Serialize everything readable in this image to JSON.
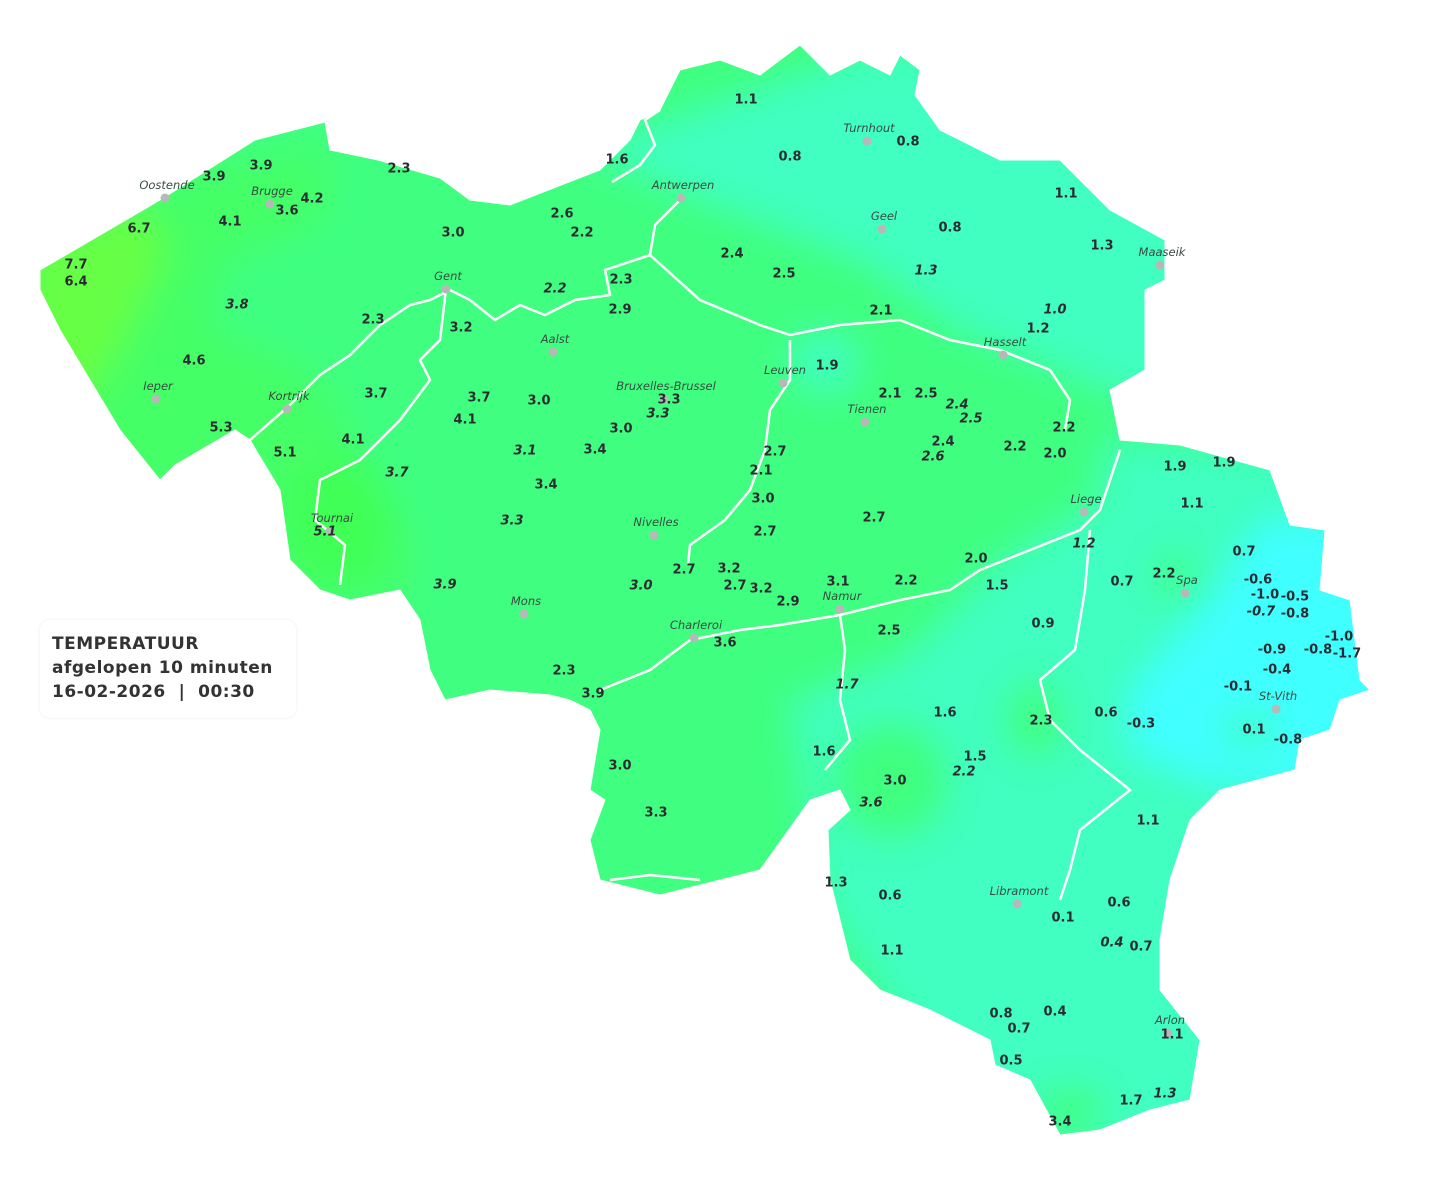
{
  "legend": {
    "title": "TEMPERATUUR",
    "subtitle": "afgelopen 10 minuten",
    "datetime": "16-02-2026  |  00:30"
  },
  "colors": {
    "far_west": "#66ff44",
    "west": "#44ff66",
    "central": "#40ff80",
    "north_east": "#40ffc0",
    "east": "#40ffff",
    "rivers": "#ffffff",
    "city_dot": "#b8b8b8",
    "label_text": "#2b2b33"
  },
  "cities": [
    "Oostende",
    "Brugge",
    "Antwerpen",
    "Turnhout",
    "Geel",
    "Maaseik",
    "Gent",
    "Aalst",
    "Hasselt",
    "Leuven",
    "Bruxelles-Brussel",
    "Ieper",
    "Kortrijk",
    "Tienen",
    "Liege",
    "Tournai",
    "Nivelles",
    "Spa",
    "Mons",
    "Namur",
    "Charleroi",
    "St-Vith",
    "Libramont",
    "Arlon"
  ],
  "readings": [
    {
      "v": "1.1"
    },
    {
      "v": "0.8"
    },
    {
      "v": "0.8"
    },
    {
      "v": "1.6"
    },
    {
      "v": "3.9"
    },
    {
      "v": "3.9"
    },
    {
      "v": "2.3"
    },
    {
      "v": "4.2"
    },
    {
      "v": "3.6"
    },
    {
      "v": "4.1"
    },
    {
      "v": "6.7"
    },
    {
      "v": "3.0"
    },
    {
      "v": "2.6"
    },
    {
      "v": "2.2"
    },
    {
      "v": "1.1"
    },
    {
      "v": "0.8"
    },
    {
      "v": "1.3"
    },
    {
      "v": "7.7"
    },
    {
      "v": "6.4"
    },
    {
      "v": "2.4"
    },
    {
      "v": "2.5"
    },
    {
      "v": "1.3",
      "italic": true
    },
    {
      "v": "2.3"
    },
    {
      "v": "2.2",
      "italic": true
    },
    {
      "v": "2.9"
    },
    {
      "v": "3.8",
      "italic": true
    },
    {
      "v": "2.3"
    },
    {
      "v": "3.2"
    },
    {
      "v": "2.1"
    },
    {
      "v": "1.0",
      "italic": true
    },
    {
      "v": "1.2"
    },
    {
      "v": "4.6"
    },
    {
      "v": "1.9"
    },
    {
      "v": "3.7"
    },
    {
      "v": "3.7"
    },
    {
      "v": "3.0"
    },
    {
      "v": "3.3"
    },
    {
      "v": "3.3",
      "italic": true
    },
    {
      "v": "2.1"
    },
    {
      "v": "2.5"
    },
    {
      "v": "2.4",
      "italic": true
    },
    {
      "v": "2.5",
      "italic": true
    },
    {
      "v": "4.1"
    },
    {
      "v": "5.3"
    },
    {
      "v": "4.1"
    },
    {
      "v": "3.0"
    },
    {
      "v": "2.2"
    },
    {
      "v": "2.4"
    },
    {
      "v": "2.6",
      "italic": true
    },
    {
      "v": "2.2"
    },
    {
      "v": "2.0"
    },
    {
      "v": "5.1"
    },
    {
      "v": "3.1",
      "italic": true
    },
    {
      "v": "3.4"
    },
    {
      "v": "2.7"
    },
    {
      "v": "2.1"
    },
    {
      "v": "3.7",
      "italic": true
    },
    {
      "v": "3.4"
    },
    {
      "v": "3.0"
    },
    {
      "v": "1.9"
    },
    {
      "v": "1.9"
    },
    {
      "v": "1.1"
    },
    {
      "v": "2.7"
    },
    {
      "v": "3.3",
      "italic": true
    },
    {
      "v": "5.1",
      "italic": true
    },
    {
      "v": "2.7"
    },
    {
      "v": "1.2",
      "italic": true
    },
    {
      "v": "0.7"
    },
    {
      "v": "2.0"
    },
    {
      "v": "2.7"
    },
    {
      "v": "3.2"
    },
    {
      "v": "2.7"
    },
    {
      "v": "3.2"
    },
    {
      "v": "3.1"
    },
    {
      "v": "2.9"
    },
    {
      "v": "2.2"
    },
    {
      "v": "1.5"
    },
    {
      "v": "3.9",
      "italic": true
    },
    {
      "v": "3.0",
      "italic": true
    },
    {
      "v": "0.7"
    },
    {
      "v": "2.2"
    },
    {
      "v": "-0.6"
    },
    {
      "v": "-1.0"
    },
    {
      "v": "-0.5"
    },
    {
      "v": "-0.7",
      "italic": true
    },
    {
      "v": "-0.8"
    },
    {
      "v": "0.9"
    },
    {
      "v": "2.5"
    },
    {
      "v": "3.6"
    },
    {
      "v": "-1.0"
    },
    {
      "v": "-0.9"
    },
    {
      "v": "-0.8"
    },
    {
      "v": "-1.7"
    },
    {
      "v": "-0.4"
    },
    {
      "v": "2.3"
    },
    {
      "v": "3.9"
    },
    {
      "v": "1.7",
      "italic": true
    },
    {
      "v": "-0.1"
    },
    {
      "v": "1.6"
    },
    {
      "v": "2.3"
    },
    {
      "v": "0.6"
    },
    {
      "v": "-0.3"
    },
    {
      "v": "0.1"
    },
    {
      "v": "-0.8"
    },
    {
      "v": "1.6"
    },
    {
      "v": "1.5"
    },
    {
      "v": "2.2",
      "italic": true
    },
    {
      "v": "3.0"
    },
    {
      "v": "3.0"
    },
    {
      "v": "3.6",
      "italic": true
    },
    {
      "v": "3.3"
    },
    {
      "v": "1.1"
    },
    {
      "v": "1.3"
    },
    {
      "v": "0.6"
    },
    {
      "v": "0.6"
    },
    {
      "v": "0.1"
    },
    {
      "v": "0.4",
      "italic": true
    },
    {
      "v": "0.7"
    },
    {
      "v": "1.1"
    },
    {
      "v": "0.8"
    },
    {
      "v": "0.4"
    },
    {
      "v": "0.7"
    },
    {
      "v": "1.1"
    },
    {
      "v": "0.5"
    },
    {
      "v": "1.7"
    },
    {
      "v": "1.3",
      "italic": true
    },
    {
      "v": "3.4"
    }
  ]
}
